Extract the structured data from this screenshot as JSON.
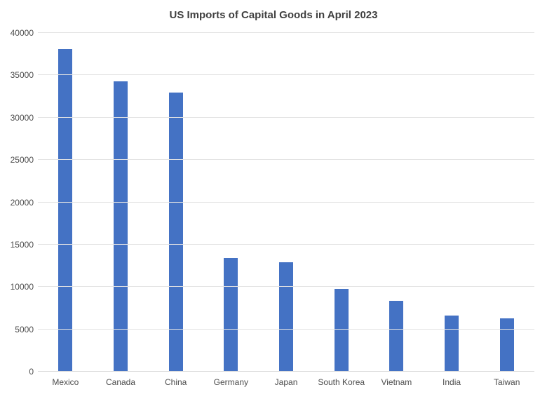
{
  "page": {
    "background_color": "#ffffff"
  },
  "chart_data": {
    "type": "bar",
    "title": "US Imports of Capital Goods in April 2023",
    "categories": [
      "Mexico",
      "Canada",
      "China",
      "Germany",
      "Japan",
      "South Korea",
      "Vietnam",
      "India",
      "Taiwan"
    ],
    "values": [
      38100,
      34300,
      33000,
      13400,
      12900,
      9800,
      8400,
      6600,
      6300
    ],
    "xlabel": "",
    "ylabel": "",
    "ylim": [
      0,
      40000
    ],
    "ytick_step": 5000,
    "yticks": [
      0,
      5000,
      10000,
      15000,
      20000,
      25000,
      30000,
      35000,
      40000
    ],
    "ytick_labels": [
      "0",
      "5000",
      "10000",
      "15000",
      "20000",
      "25000",
      "30000",
      "35000",
      "40000"
    ],
    "grid": true,
    "legend_position": "none",
    "colors": {
      "bar_fill": "#4472C4",
      "gridline": "#e3e3e3",
      "axis_line": "#d6d6d6",
      "title_text": "#3f3f3f",
      "tick_text": "#4d4d4d"
    }
  }
}
